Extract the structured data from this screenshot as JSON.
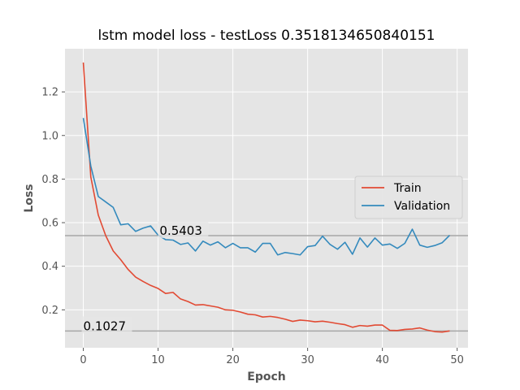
{
  "chart_data": {
    "type": "line",
    "title": "lstm model loss - testLoss 0.3518134650840151",
    "xlabel": "Epoch",
    "ylabel": "Loss",
    "xlim": [
      -2.45,
      51.45
    ],
    "ylim": [
      0.026,
      1.398
    ],
    "xticks": [
      0,
      10,
      20,
      30,
      40,
      50
    ],
    "yticks": [
      0.2,
      0.4,
      0.6,
      0.8,
      1.0,
      1.2
    ],
    "ytick_labels": [
      "0.2",
      "0.4",
      "0.6",
      "0.8",
      "1.0",
      "1.2"
    ],
    "grid": true,
    "legend_position": "center-right",
    "x": [
      0,
      1,
      2,
      3,
      4,
      5,
      6,
      7,
      8,
      9,
      10,
      11,
      12,
      13,
      14,
      15,
      16,
      17,
      18,
      19,
      20,
      21,
      22,
      23,
      24,
      25,
      26,
      27,
      28,
      29,
      30,
      31,
      32,
      33,
      34,
      35,
      36,
      37,
      38,
      39,
      40,
      41,
      42,
      43,
      44,
      45,
      46,
      47,
      48,
      49
    ],
    "series": [
      {
        "name": "Train",
        "color": "#e24a33",
        "values": [
          1.335,
          0.81,
          0.635,
          0.54,
          0.47,
          0.43,
          0.385,
          0.35,
          0.33,
          0.312,
          0.298,
          0.275,
          0.28,
          0.25,
          0.238,
          0.222,
          0.224,
          0.218,
          0.212,
          0.2,
          0.198,
          0.19,
          0.18,
          0.177,
          0.167,
          0.17,
          0.165,
          0.157,
          0.147,
          0.153,
          0.15,
          0.145,
          0.148,
          0.143,
          0.137,
          0.132,
          0.12,
          0.128,
          0.125,
          0.13,
          0.13,
          0.106,
          0.105,
          0.11,
          0.112,
          0.117,
          0.107,
          0.1,
          0.098,
          0.103
        ]
      },
      {
        "name": "Validation",
        "color": "#348abd",
        "values": [
          1.08,
          0.86,
          0.72,
          0.695,
          0.67,
          0.59,
          0.595,
          0.56,
          0.575,
          0.585,
          0.543,
          0.522,
          0.52,
          0.5,
          0.507,
          0.47,
          0.515,
          0.497,
          0.512,
          0.485,
          0.505,
          0.485,
          0.485,
          0.465,
          0.505,
          0.505,
          0.452,
          0.463,
          0.458,
          0.452,
          0.49,
          0.495,
          0.538,
          0.5,
          0.478,
          0.51,
          0.455,
          0.53,
          0.488,
          0.53,
          0.497,
          0.502,
          0.482,
          0.505,
          0.57,
          0.497,
          0.487,
          0.495,
          0.508,
          0.542
        ]
      }
    ],
    "hlines": [
      {
        "y": 0.5403,
        "label": "0.5403",
        "label_x": 10.2
      },
      {
        "y": 0.1027,
        "label": "0.1027",
        "label_x": 0.0
      }
    ]
  }
}
